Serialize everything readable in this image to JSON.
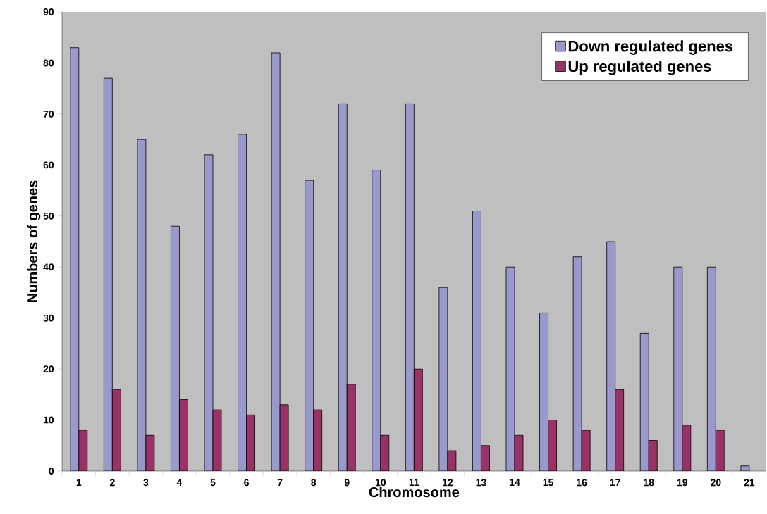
{
  "chart_data": {
    "type": "bar",
    "xlabel": "Chromosome",
    "ylabel": "Numbers of genes",
    "categories": [
      "1",
      "2",
      "3",
      "4",
      "5",
      "6",
      "7",
      "8",
      "9",
      "10",
      "11",
      "12",
      "13",
      "14",
      "15",
      "16",
      "17",
      "18",
      "19",
      "20",
      "21"
    ],
    "series": [
      {
        "name": "Down regulated genes",
        "color": "#9999cc",
        "values": [
          83,
          77,
          65,
          48,
          62,
          66,
          82,
          57,
          72,
          59,
          72,
          36,
          51,
          40,
          31,
          42,
          45,
          27,
          40,
          40,
          1
        ]
      },
      {
        "name": "Up regulated genes",
        "color": "#993366",
        "values": [
          8,
          16,
          7,
          14,
          12,
          11,
          13,
          12,
          17,
          7,
          20,
          4,
          5,
          7,
          10,
          8,
          16,
          6,
          9,
          8,
          null
        ]
      }
    ],
    "ylim": [
      0,
      90
    ],
    "yticks": [
      0,
      10,
      20,
      30,
      40,
      50,
      60,
      70,
      80,
      90
    ],
    "grid": false,
    "legend": "top right"
  }
}
